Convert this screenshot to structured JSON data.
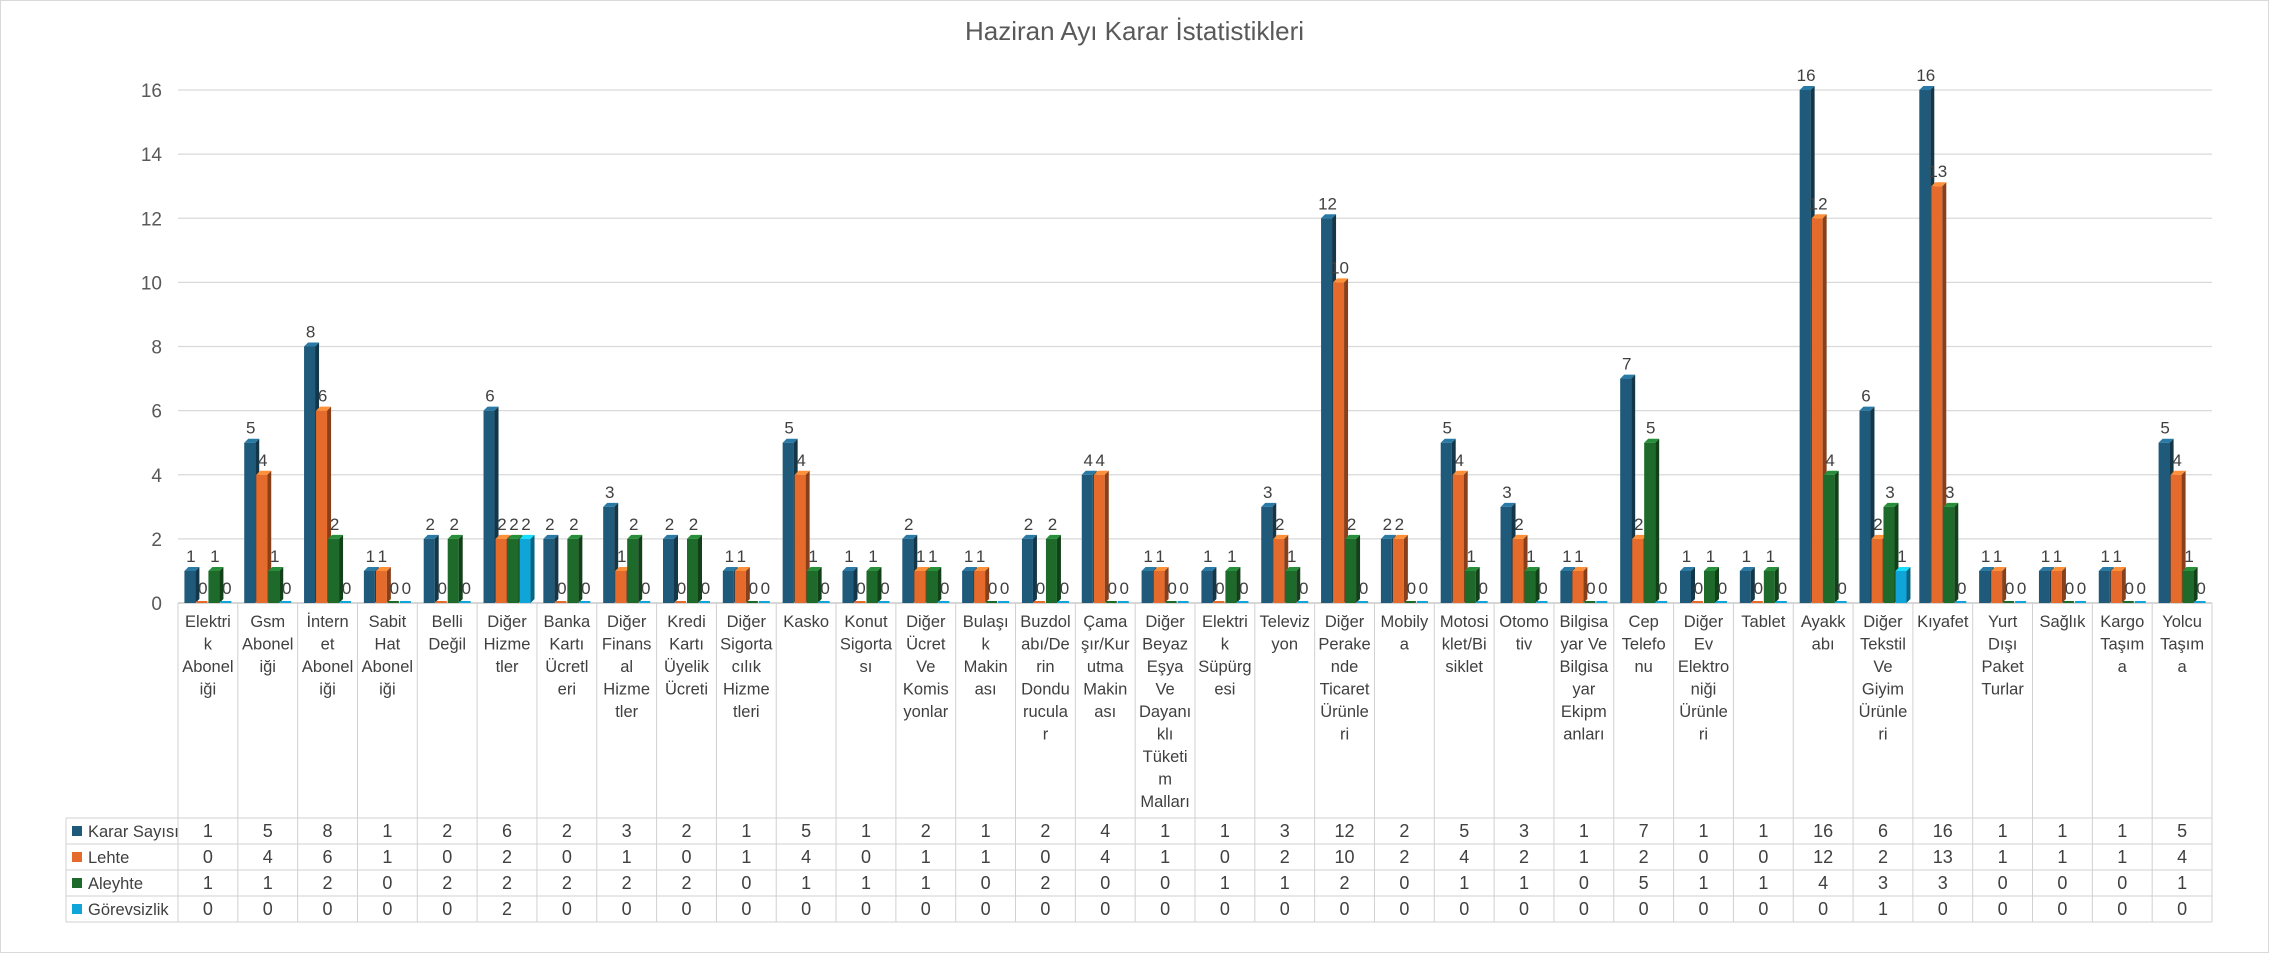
{
  "chart_data": {
    "type": "bar",
    "title": "Haziran Ayı Karar İstatistikleri",
    "xlabel": "",
    "ylabel": "",
    "ylim": [
      0,
      16
    ],
    "yticks": [
      0,
      2,
      4,
      6,
      8,
      10,
      12,
      14,
      16
    ],
    "grid": true,
    "legend": "data-table-left",
    "categories": [
      "Elektrik Aboneliği",
      "Gsm Aboneliği",
      "İnternet Aboneliği",
      "Sabit Hat Aboneliği",
      "Belli Değil",
      "Diğer Hizmetler",
      "Banka Kartı Ücretleri",
      "Diğer Finansal Hizmetler",
      "Kredi Kartı Üyelik Ücreti",
      "Diğer Sigortacılık Hizmetleri",
      "Kasko",
      "Konut Sigortası",
      "Diğer Ücret Ve Komisyonlar",
      "Bulaşık Makinası",
      "Buzdolabı/Derin Dondurucular",
      "Çamaşır/Kurutma Makinası",
      "Diğer Beyaz Eşya Ve Dayanıklı Tüketim Malları",
      "Elektrik Süpürgesi",
      "Televizyon",
      "Diğer Perakende Ticaret Ürünleri",
      "Mobilya",
      "Motosiklet/Bisiklet",
      "Otomotiv",
      "Bilgisayar Ve Bilgisayar Ekipmanları",
      "Cep Telefonu",
      "Diğer Ev Elektroniği Ürünleri",
      "Tablet",
      "Ayakkabı",
      "Diğer Tekstil Ve Giyim Ürünleri",
      "Kıyafet",
      "Yurt Dışı Paket Turlar",
      "Sağlık",
      "Kargo Taşıma",
      "Yolcu Taşıma"
    ],
    "category_lines": [
      [
        "Elektri",
        "k",
        "Abonel",
        "iği"
      ],
      [
        "Gsm",
        "Abonel",
        "iği"
      ],
      [
        "İntern",
        "et",
        "Abonel",
        "iği"
      ],
      [
        "Sabit",
        "Hat",
        "Abonel",
        "iği"
      ],
      [
        "Belli",
        "Değil"
      ],
      [
        "Diğer",
        "Hizme",
        "tler"
      ],
      [
        "Banka",
        "Kartı",
        "Ücretl",
        "eri"
      ],
      [
        "Diğer",
        "Finans",
        "al",
        "Hizme",
        "tler"
      ],
      [
        "Kredi",
        "Kartı",
        "Üyelik",
        "Ücreti"
      ],
      [
        "Diğer",
        "Sigorta",
        "cılık",
        "Hizme",
        "tleri"
      ],
      [
        "Kasko"
      ],
      [
        "Konut",
        "Sigorta",
        "sı"
      ],
      [
        "Diğer",
        "Ücret",
        "Ve",
        "Komis",
        "yonlar"
      ],
      [
        "Bulaşı",
        "k",
        "Makin",
        "ası"
      ],
      [
        "Buzdol",
        "abı/De",
        "rin",
        "Dondu",
        "rucula",
        "r"
      ],
      [
        "Çama",
        "şır/Kur",
        "utma",
        "Makin",
        "ası"
      ],
      [
        "Diğer",
        "Beyaz",
        "Eşya",
        "Ve",
        "Dayanı",
        "klı",
        "Tüketi",
        "m",
        "Malları"
      ],
      [
        "Elektri",
        "k",
        "Süpürg",
        "esi"
      ],
      [
        "Televiz",
        "yon"
      ],
      [
        "Diğer",
        "Perake",
        "nde",
        "Ticaret",
        "Ürünle",
        "ri"
      ],
      [
        "Mobily",
        "a"
      ],
      [
        "Motosi",
        "klet/Bi",
        "siklet"
      ],
      [
        "Otomo",
        "tiv"
      ],
      [
        "Bilgisa",
        "yar Ve",
        "Bilgisa",
        "yar",
        "Ekipm",
        "anları"
      ],
      [
        "Cep",
        "Telefo",
        "nu"
      ],
      [
        "Diğer",
        "Ev",
        "Elektro",
        "niği",
        "Ürünle",
        "ri"
      ],
      [
        "Tablet"
      ],
      [
        "Ayakk",
        "abı"
      ],
      [
        "Diğer",
        "Tekstil",
        "Ve",
        "Giyim",
        "Ürünle",
        "ri"
      ],
      [
        "Kıyafet"
      ],
      [
        "Yurt",
        "Dışı",
        "Paket",
        "Turlar"
      ],
      [
        "Sağlık"
      ],
      [
        "Kargo",
        "Taşım",
        "a"
      ],
      [
        "Yolcu",
        "Taşım",
        "a"
      ]
    ],
    "series": [
      {
        "name": "Karar Sayısı",
        "color": "#1f5a7a",
        "values": [
          1,
          5,
          8,
          1,
          2,
          6,
          2,
          3,
          2,
          1,
          5,
          1,
          2,
          1,
          2,
          4,
          1,
          1,
          3,
          12,
          2,
          5,
          3,
          1,
          7,
          1,
          1,
          16,
          6,
          16,
          1,
          1,
          1,
          5
        ]
      },
      {
        "name": "Lehte",
        "color": "#e46b2b",
        "values": [
          0,
          4,
          6,
          1,
          0,
          2,
          0,
          1,
          0,
          1,
          4,
          0,
          1,
          1,
          0,
          4,
          1,
          0,
          2,
          10,
          2,
          4,
          2,
          1,
          2,
          0,
          0,
          12,
          2,
          13,
          1,
          1,
          1,
          4
        ]
      },
      {
        "name": "Aleyhte",
        "color": "#1d6a2a",
        "values": [
          1,
          1,
          2,
          0,
          2,
          2,
          2,
          2,
          2,
          0,
          1,
          1,
          1,
          0,
          2,
          0,
          0,
          1,
          1,
          2,
          0,
          1,
          1,
          0,
          5,
          1,
          1,
          4,
          3,
          3,
          0,
          0,
          0,
          1
        ]
      },
      {
        "name": "Görevsizlik",
        "color": "#0fa5d8",
        "values": [
          0,
          0,
          0,
          0,
          0,
          2,
          0,
          0,
          0,
          0,
          0,
          0,
          0,
          0,
          0,
          0,
          0,
          0,
          0,
          0,
          0,
          0,
          0,
          0,
          0,
          0,
          0,
          0,
          1,
          0,
          0,
          0,
          0,
          0
        ]
      }
    ]
  }
}
